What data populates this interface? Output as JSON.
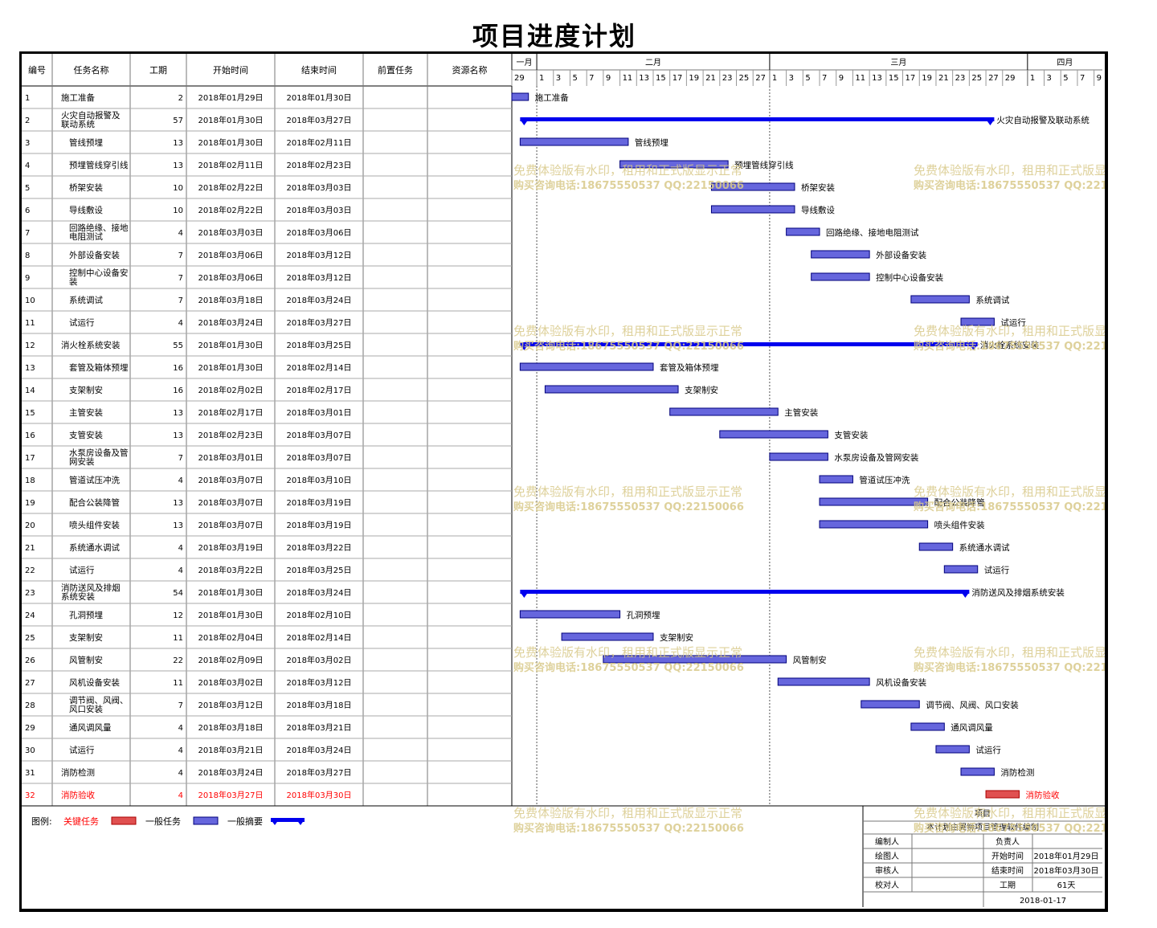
{
  "title": "项目进度计划",
  "columns": [
    "编号",
    "任务名称",
    "工期",
    "开始时间",
    "结束时间",
    "前置任务",
    "资源名称"
  ],
  "chart_data": {
    "type": "gantt",
    "time_axis": {
      "start": "2018-01-29",
      "end": "2018-04-10",
      "months": [
        {
          "label": "一月",
          "start": "2018-01-29",
          "end": "2018-02-01"
        },
        {
          "label": "二月",
          "start": "2018-02-01",
          "end": "2018-03-01"
        },
        {
          "label": "三月",
          "start": "2018-03-01",
          "end": "2018-04-01"
        },
        {
          "label": "四月",
          "start": "2018-04-01",
          "end": "2018-04-10"
        }
      ],
      "day_labels": [
        "2018-01-29",
        "2018-02-01",
        "2018-02-03",
        "2018-02-05",
        "2018-02-07",
        "2018-02-09",
        "2018-02-11",
        "2018-02-13",
        "2018-02-15",
        "2018-02-17",
        "2018-02-19",
        "2018-02-21",
        "2018-02-23",
        "2018-02-25",
        "2018-02-27",
        "2018-03-01",
        "2018-03-03",
        "2018-03-05",
        "2018-03-07",
        "2018-03-09",
        "2018-03-11",
        "2018-03-13",
        "2018-03-15",
        "2018-03-17",
        "2018-03-19",
        "2018-03-21",
        "2018-03-23",
        "2018-03-25",
        "2018-03-27",
        "2018-03-29",
        "2018-04-01",
        "2018-04-03",
        "2018-04-05",
        "2018-04-07",
        "2018-04-09"
      ]
    },
    "tasks": [
      {
        "id": "1",
        "name": "施工准备",
        "duration": "2",
        "start": "2018年01月29日",
        "end": "2018年01月30日",
        "kind": "task",
        "indent": 0
      },
      {
        "id": "2",
        "name": "火灾自动报警及联动系统",
        "duration": "57",
        "start": "2018年01月30日",
        "end": "2018年03月27日",
        "kind": "summary",
        "indent": 0
      },
      {
        "id": "3",
        "name": "管线预埋",
        "duration": "13",
        "start": "2018年01月30日",
        "end": "2018年02月11日",
        "kind": "task",
        "indent": 1
      },
      {
        "id": "4",
        "name": "预埋管线穿引线",
        "duration": "13",
        "start": "2018年02月11日",
        "end": "2018年02月23日",
        "kind": "task",
        "indent": 1
      },
      {
        "id": "5",
        "name": "桥架安装",
        "duration": "10",
        "start": "2018年02月22日",
        "end": "2018年03月03日",
        "kind": "task",
        "indent": 1
      },
      {
        "id": "6",
        "name": "导线敷设",
        "duration": "10",
        "start": "2018年02月22日",
        "end": "2018年03月03日",
        "kind": "task",
        "indent": 1
      },
      {
        "id": "7",
        "name": "回路绝缘、接地电阻测试",
        "duration": "4",
        "start": "2018年03月03日",
        "end": "2018年03月06日",
        "kind": "task",
        "indent": 1
      },
      {
        "id": "8",
        "name": "外部设备安装",
        "duration": "7",
        "start": "2018年03月06日",
        "end": "2018年03月12日",
        "kind": "task",
        "indent": 1
      },
      {
        "id": "9",
        "name": "控制中心设备安装",
        "duration": "7",
        "start": "2018年03月06日",
        "end": "2018年03月12日",
        "kind": "task",
        "indent": 1
      },
      {
        "id": "10",
        "name": "系统调试",
        "duration": "7",
        "start": "2018年03月18日",
        "end": "2018年03月24日",
        "kind": "task",
        "indent": 1
      },
      {
        "id": "11",
        "name": "试运行",
        "duration": "4",
        "start": "2018年03月24日",
        "end": "2018年03月27日",
        "kind": "task",
        "indent": 1
      },
      {
        "id": "12",
        "name": "消火栓系统安装",
        "duration": "55",
        "start": "2018年01月30日",
        "end": "2018年03月25日",
        "kind": "summary",
        "indent": 0
      },
      {
        "id": "13",
        "name": "套管及箱体预埋",
        "duration": "16",
        "start": "2018年01月30日",
        "end": "2018年02月14日",
        "kind": "task",
        "indent": 1
      },
      {
        "id": "14",
        "name": "支架制安",
        "duration": "16",
        "start": "2018年02月02日",
        "end": "2018年02月17日",
        "kind": "task",
        "indent": 1
      },
      {
        "id": "15",
        "name": "主管安装",
        "duration": "13",
        "start": "2018年02月17日",
        "end": "2018年03月01日",
        "kind": "task",
        "indent": 1
      },
      {
        "id": "16",
        "name": "支管安装",
        "duration": "13",
        "start": "2018年02月23日",
        "end": "2018年03月07日",
        "kind": "task",
        "indent": 1
      },
      {
        "id": "17",
        "name": "水泵房设备及管网安装",
        "duration": "7",
        "start": "2018年03月01日",
        "end": "2018年03月07日",
        "kind": "task",
        "indent": 1
      },
      {
        "id": "18",
        "name": "管道试压冲洗",
        "duration": "4",
        "start": "2018年03月07日",
        "end": "2018年03月10日",
        "kind": "task",
        "indent": 1
      },
      {
        "id": "19",
        "name": "配合公装降管",
        "duration": "13",
        "start": "2018年03月07日",
        "end": "2018年03月19日",
        "kind": "task",
        "indent": 1
      },
      {
        "id": "20",
        "name": "喷头组件安装",
        "duration": "13",
        "start": "2018年03月07日",
        "end": "2018年03月19日",
        "kind": "task",
        "indent": 1
      },
      {
        "id": "21",
        "name": "系统通水调试",
        "duration": "4",
        "start": "2018年03月19日",
        "end": "2018年03月22日",
        "kind": "task",
        "indent": 1
      },
      {
        "id": "22",
        "name": "试运行",
        "duration": "4",
        "start": "2018年03月22日",
        "end": "2018年03月25日",
        "kind": "task",
        "indent": 1
      },
      {
        "id": "23",
        "name": "消防送风及排烟系统安装",
        "duration": "54",
        "start": "2018年01月30日",
        "end": "2018年03月24日",
        "kind": "summary",
        "indent": 0
      },
      {
        "id": "24",
        "name": "孔洞预埋",
        "duration": "12",
        "start": "2018年01月30日",
        "end": "2018年02月10日",
        "kind": "task",
        "indent": 1
      },
      {
        "id": "25",
        "name": "支架制安",
        "duration": "11",
        "start": "2018年02月04日",
        "end": "2018年02月14日",
        "kind": "task",
        "indent": 1
      },
      {
        "id": "26",
        "name": "风管制安",
        "duration": "22",
        "start": "2018年02月09日",
        "end": "2018年03月02日",
        "kind": "task",
        "indent": 1
      },
      {
        "id": "27",
        "name": "风机设备安装",
        "duration": "11",
        "start": "2018年03月02日",
        "end": "2018年03月12日",
        "kind": "task",
        "indent": 1
      },
      {
        "id": "28",
        "name": "调节阀、风阀、风口安装",
        "duration": "7",
        "start": "2018年03月12日",
        "end": "2018年03月18日",
        "kind": "task",
        "indent": 1
      },
      {
        "id": "29",
        "name": "通风调风量",
        "duration": "4",
        "start": "2018年03月18日",
        "end": "2018年03月21日",
        "kind": "task",
        "indent": 1
      },
      {
        "id": "30",
        "name": "试运行",
        "duration": "4",
        "start": "2018年03月21日",
        "end": "2018年03月24日",
        "kind": "task",
        "indent": 1
      },
      {
        "id": "31",
        "name": "消防检测",
        "duration": "4",
        "start": "2018年03月24日",
        "end": "2018年03月27日",
        "kind": "task",
        "indent": 0
      },
      {
        "id": "32",
        "name": "消防验收",
        "duration": "4",
        "start": "2018年03月27日",
        "end": "2018年03月30日",
        "kind": "critical",
        "indent": 0
      }
    ]
  },
  "legend": {
    "prefix": "图例:",
    "critical": "关键任务",
    "normal": "一般任务",
    "summary": "一般摘要"
  },
  "info": {
    "project_label": "项目",
    "note": "本计划由翼狮项目管理软件编制",
    "rows": [
      {
        "label": "编制人",
        "value": "",
        "label2": "负责人",
        "value2": ""
      },
      {
        "label": "绘图人",
        "value": "",
        "label2": "开始时间",
        "value2": "2018年01月29日"
      },
      {
        "label": "审核人",
        "value": "",
        "label2": "结束时间",
        "value2": "2018年03月30日"
      },
      {
        "label": "校对人",
        "value": "",
        "label2": "工期",
        "value2": "61天"
      }
    ],
    "date": "2018-01-17"
  },
  "watermark": {
    "line1": "免费体验版有水印，租用和正式版显示正常",
    "line2": "购买咨询电话:18675550537 QQ:22150066"
  },
  "colors": {
    "summary": "#0000ee",
    "task_fill": "#6666dd",
    "task_stroke": "#00007a",
    "critical_fill": "#e05050",
    "critical_text": "#ff0000",
    "watermark": "#d8c98a"
  }
}
